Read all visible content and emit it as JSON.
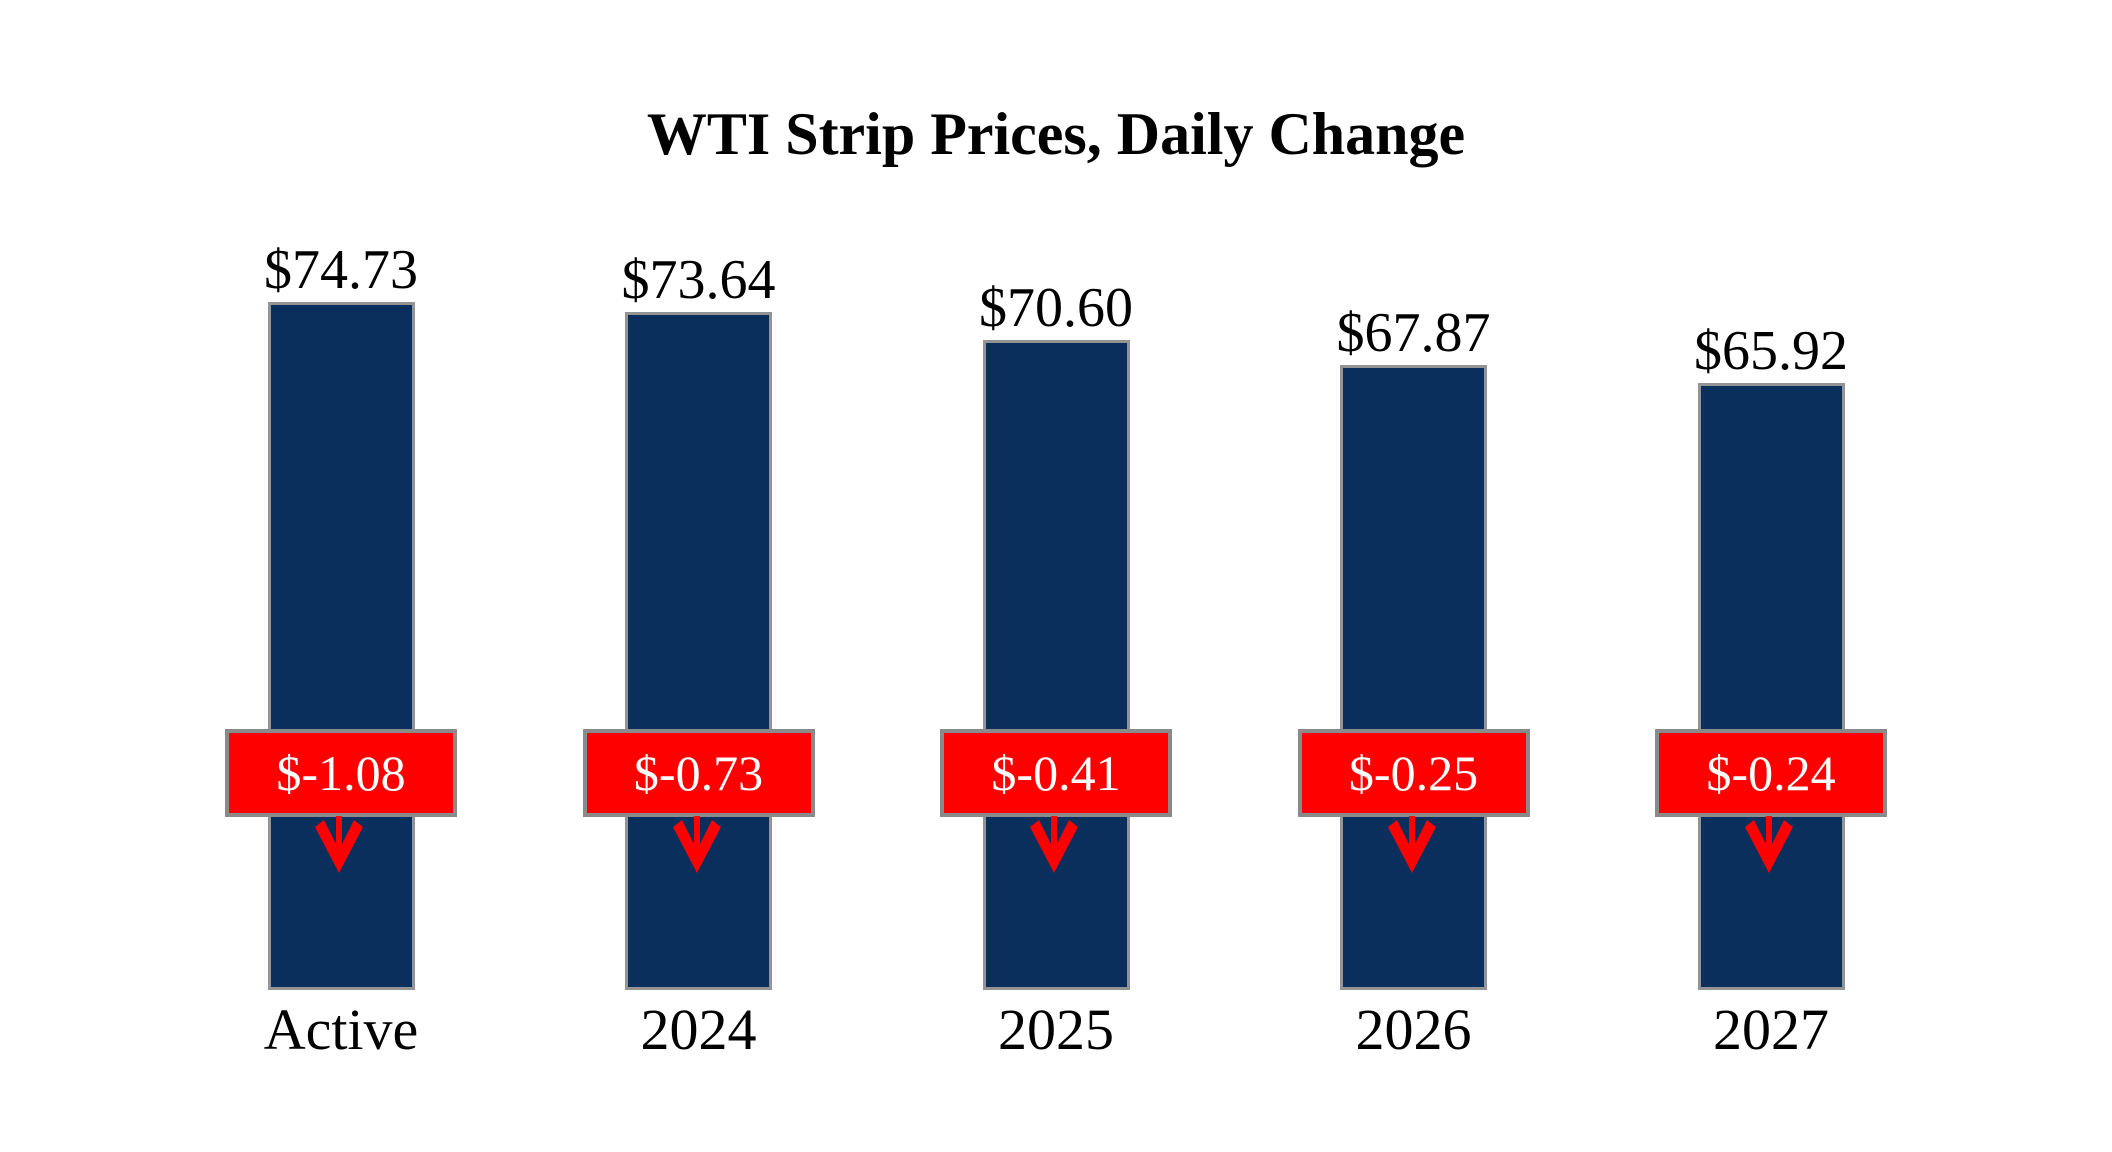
{
  "title": "WTI Strip Prices, Daily Change",
  "colors": {
    "bar_fill": "#0a2f5c",
    "bar_border": "#949494",
    "badge_fill": "#fe0000",
    "badge_border": "#8a8a8a",
    "badge_text": "#ffffff",
    "label_text": "#000000",
    "arrow": "#fe0000",
    "background": "#ffffff"
  },
  "chart_data": {
    "type": "bar",
    "title": "WTI Strip Prices, Daily Change",
    "categories": [
      "Active",
      "2024",
      "2025",
      "2026",
      "2027"
    ],
    "series": [
      {
        "name": "WTI strip price (USD per barrel)",
        "values": [
          74.73,
          73.64,
          70.6,
          67.87,
          65.92
        ]
      },
      {
        "name": "Daily change (USD)",
        "values": [
          -1.08,
          -0.73,
          -0.41,
          -0.25,
          -0.24
        ]
      }
    ],
    "value_labels": [
      "$74.73",
      "$73.64",
      "$70.60",
      "$67.87",
      "$65.92"
    ],
    "change_labels": [
      "$-1.08",
      "$-0.73",
      "$-0.41",
      "$-0.25",
      "$-0.24"
    ],
    "change_direction_icon": "down-arrow",
    "xlabel": "",
    "ylabel": "",
    "ylim": [
      0,
      81.6
    ],
    "grid": false,
    "legend": "none",
    "axis_lines": false
  }
}
